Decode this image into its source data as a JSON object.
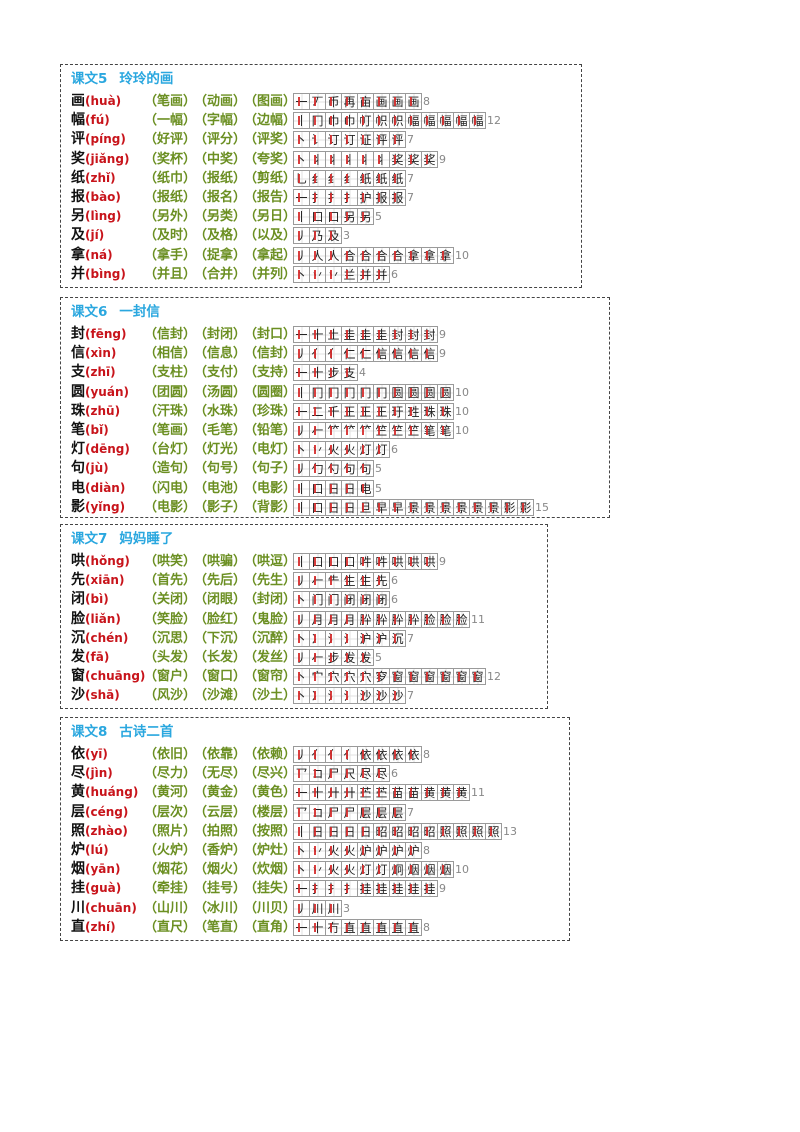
{
  "sections": [
    {
      "number": "课文5",
      "title": "玲玲的画",
      "rows": [
        {
          "char": "画",
          "pinyin": "huà",
          "words": [
            "（笔画）",
            "（动画）",
            "（图画）"
          ],
          "strokes": [
            "一",
            "丆",
            "币",
            "再",
            "亩",
            "画",
            "画",
            "画"
          ],
          "count": "8"
        },
        {
          "char": "幅",
          "pinyin": "fú",
          "words": [
            "（一幅）",
            "（字幅）",
            "（边幅）"
          ],
          "strokes": [
            "丨",
            "冂",
            "巾",
            "巾",
            "帄",
            "帜",
            "帜",
            "幅",
            "幅",
            "幅",
            "幅",
            "幅"
          ],
          "count": "12"
        },
        {
          "char": "评",
          "pinyin": "píng",
          "words": [
            "（好评）",
            "（评分）",
            "（评奖）"
          ],
          "strokes": [
            "丶",
            "讠",
            "订",
            "订",
            "证",
            "评",
            "评"
          ],
          "count": "7"
        },
        {
          "char": "奖",
          "pinyin": "jiǎng",
          "words": [
            "（奖杯）",
            "（中奖）",
            "（夸奖）"
          ],
          "strokes": [
            "丶",
            "丬",
            "丬",
            "丬",
            "丬",
            "丬",
            "奖",
            "奖",
            "奖"
          ],
          "count": "9"
        },
        {
          "char": "纸",
          "pinyin": "zhǐ",
          "words": [
            "（纸巾）",
            "（报纸）",
            "（剪纸）"
          ],
          "strokes": [
            "乚",
            "纟",
            "纟",
            "纟",
            "纸",
            "纸",
            "纸"
          ],
          "count": "7"
        },
        {
          "char": "报",
          "pinyin": "bào",
          "words": [
            "（报纸）",
            "（报名）",
            "（报告）"
          ],
          "strokes": [
            "一",
            "扌",
            "扌",
            "扌",
            "护",
            "报",
            "报"
          ],
          "count": "7"
        },
        {
          "char": "另",
          "pinyin": "lìng",
          "words": [
            "（另外）",
            "（另类）",
            "（另日）"
          ],
          "strokes": [
            "丨",
            "口",
            "口",
            "另",
            "另"
          ],
          "count": "5"
        },
        {
          "char": "及",
          "pinyin": "jí",
          "words": [
            "（及时）",
            "（及格）",
            "（以及）"
          ],
          "strokes": [
            "丿",
            "乃",
            "及"
          ],
          "count": "3"
        },
        {
          "char": "拿",
          "pinyin": "ná",
          "words": [
            "（拿手）",
            "（捉拿）",
            "（拿起）"
          ],
          "strokes": [
            "丿",
            "人",
            "人",
            "合",
            "合",
            "合",
            "合",
            "拿",
            "拿",
            "拿"
          ],
          "count": "10"
        },
        {
          "char": "并",
          "pinyin": "bìng",
          "words": [
            "（并且）",
            "（合并）",
            "（并列）"
          ],
          "strokes": [
            "丶",
            "丷",
            "丷",
            "兰",
            "并",
            "并"
          ],
          "count": "6"
        }
      ]
    },
    {
      "number": "课文6",
      "title": "一封信",
      "rows": [
        {
          "char": "封",
          "pinyin": "fēng",
          "words": [
            "（信封）",
            "（封闭）",
            "（封口）"
          ],
          "strokes": [
            "一",
            "十",
            "土",
            "圭",
            "圭",
            "圭",
            "封",
            "封",
            "封"
          ],
          "count": "9"
        },
        {
          "char": "信",
          "pinyin": "xìn",
          "words": [
            "（相信）",
            "（信息）",
            "（信封）"
          ],
          "strokes": [
            "丿",
            "亻",
            "亻",
            "仁",
            "仁",
            "信",
            "信",
            "信",
            "信"
          ],
          "count": "9"
        },
        {
          "char": "支",
          "pinyin": "zhī",
          "words": [
            "（支柱）",
            "（支付）",
            "（支持）"
          ],
          "strokes": [
            "一",
            "十",
            "步",
            "支"
          ],
          "count": "4"
        },
        {
          "char": "圆",
          "pinyin": "yuán",
          "words": [
            "（团圆）",
            "（汤圆）",
            "（圆圈）"
          ],
          "strokes": [
            "丨",
            "冂",
            "冂",
            "冂",
            "冂",
            "冂",
            "圆",
            "圆",
            "圆",
            "圆"
          ],
          "count": "10"
        },
        {
          "char": "珠",
          "pinyin": "zhū",
          "words": [
            "（汗珠）",
            "（水珠）",
            "（珍珠）"
          ],
          "strokes": [
            "一",
            "二",
            "千",
            "王",
            "王",
            "王",
            "玗",
            "珄",
            "珠",
            "珠"
          ],
          "count": "10"
        },
        {
          "char": "笔",
          "pinyin": "bǐ",
          "words": [
            "（笔画）",
            "（毛笔）",
            "（铅笔）"
          ],
          "strokes": [
            "丿",
            "𠂉",
            "𥫗",
            "𥫗",
            "𥫗",
            "竺",
            "竺",
            "竺",
            "笔",
            "笔"
          ],
          "count": "10"
        },
        {
          "char": "灯",
          "pinyin": "dēng",
          "words": [
            "（台灯）",
            "（灯光）",
            "（电灯）"
          ],
          "strokes": [
            "丶",
            "丷",
            "火",
            "火",
            "灯",
            "灯"
          ],
          "count": "6"
        },
        {
          "char": "句",
          "pinyin": "jù",
          "words": [
            "（造句）",
            "（句号）",
            "（句子）"
          ],
          "strokes": [
            "丿",
            "勹",
            "勺",
            "句",
            "句"
          ],
          "count": "5"
        },
        {
          "char": "电",
          "pinyin": "diàn",
          "words": [
            "（闪电）",
            "（电池）",
            "（电影）"
          ],
          "strokes": [
            "丨",
            "口",
            "日",
            "日",
            "电"
          ],
          "count": "5"
        },
        {
          "char": "影",
          "pinyin": "yǐng",
          "words": [
            "（电影）",
            "（影子）",
            "（背影）"
          ],
          "strokes": [
            "丨",
            "口",
            "日",
            "日",
            "旦",
            "早",
            "早",
            "景",
            "景",
            "景",
            "景",
            "景",
            "景",
            "影",
            "影"
          ],
          "count": "15"
        }
      ]
    },
    {
      "number": "课文7",
      "title": "妈妈睡了",
      "rows": [
        {
          "char": "哄",
          "pinyin": "hǒng",
          "words": [
            "（哄笑）",
            "（哄骗）",
            "（哄逗）"
          ],
          "strokes": [
            "丨",
            "口",
            "口",
            "口",
            "吽",
            "吽",
            "哄",
            "哄",
            "哄"
          ],
          "count": "9"
        },
        {
          "char": "先",
          "pinyin": "xiān",
          "words": [
            "（首先）",
            "（先后）",
            "（先生）"
          ],
          "strokes": [
            "丿",
            "𠂉",
            "⺧",
            "生",
            "生",
            "先"
          ],
          "count": "6"
        },
        {
          "char": "闭",
          "pinyin": "bì",
          "words": [
            "（关闭）",
            "（闭眼）",
            "（封闭）"
          ],
          "strokes": [
            "丶",
            "门",
            "门",
            "闭",
            "闭",
            "闭"
          ],
          "count": "6"
        },
        {
          "char": "脸",
          "pinyin": "liǎn",
          "words": [
            "（笑脸）",
            "（脸红）",
            "（鬼脸）"
          ],
          "strokes": [
            "丿",
            "月",
            "月",
            "月",
            "肸",
            "肸",
            "肸",
            "肸",
            "脸",
            "脸",
            "脸"
          ],
          "count": "11"
        },
        {
          "char": "沉",
          "pinyin": "chén",
          "words": [
            "（沉思）",
            "（下沉）",
            "（沉醉）"
          ],
          "strokes": [
            "丶",
            "冫",
            "氵",
            "氵",
            "沪",
            "沪",
            "沉"
          ],
          "count": "7"
        },
        {
          "char": "发",
          "pinyin": "fā",
          "words": [
            "（头发）",
            "（长发）",
            "（发丝）"
          ],
          "strokes": [
            "丿",
            "𠂉",
            "步",
            "发",
            "发"
          ],
          "count": "5"
        },
        {
          "char": "窗",
          "pinyin": "chuāng",
          "words": [
            "（窗户）",
            "（窗口）",
            "（窗帘）"
          ],
          "strokes": [
            "丶",
            "宀",
            "穴",
            "穴",
            "穴",
            "穸",
            "窗",
            "窗",
            "窗",
            "窗",
            "窗",
            "窗"
          ],
          "count": "12"
        },
        {
          "char": "沙",
          "pinyin": "shā",
          "words": [
            "（风沙）",
            "（沙滩）",
            "（沙土）"
          ],
          "strokes": [
            "丶",
            "冫",
            "氵",
            "氵",
            "沙",
            "沙",
            "沙"
          ],
          "count": "7"
        }
      ]
    },
    {
      "number": "课文8",
      "title": "古诗二首",
      "rows": [
        {
          "char": "依",
          "pinyin": "yī",
          "words": [
            "（依旧）",
            "（依靠）",
            "（依赖）"
          ],
          "strokes": [
            "丿",
            "亻",
            "亻",
            "亻",
            "依",
            "依",
            "依",
            "依"
          ],
          "count": "8"
        },
        {
          "char": "尽",
          "pinyin": "jìn",
          "words": [
            "（尽力）",
            "（无尽）",
            "（尽兴）"
          ],
          "strokes": [
            "乛",
            "コ",
            "尸",
            "尺",
            "尽",
            "尽"
          ],
          "count": "6"
        },
        {
          "char": "黄",
          "pinyin": "huáng",
          "words": [
            "（黄河）",
            "（黄金）",
            "（黄色）"
          ],
          "strokes": [
            "一",
            "十",
            "廾",
            "廾",
            "苎",
            "苎",
            "苗",
            "苗",
            "黄",
            "黄",
            "黄"
          ],
          "count": "11"
        },
        {
          "char": "层",
          "pinyin": "céng",
          "words": [
            "（层次）",
            "（云层）",
            "（楼层）"
          ],
          "strokes": [
            "乛",
            "コ",
            "尸",
            "尸",
            "层",
            "层",
            "层"
          ],
          "count": "7"
        },
        {
          "char": "照",
          "pinyin": "zhào",
          "words": [
            "（照片）",
            "（拍照）",
            "（按照）"
          ],
          "strokes": [
            "丨",
            "日",
            "日",
            "日",
            "日",
            "昭",
            "昭",
            "昭",
            "昭",
            "照",
            "照",
            "照",
            "照"
          ],
          "count": "13"
        },
        {
          "char": "炉",
          "pinyin": "lú",
          "words": [
            "（火炉）",
            "（香炉）",
            "（炉灶）"
          ],
          "strokes": [
            "丶",
            "丷",
            "火",
            "火",
            "炉",
            "炉",
            "炉",
            "炉"
          ],
          "count": "8"
        },
        {
          "char": "烟",
          "pinyin": "yān",
          "words": [
            "（烟花）",
            "（烟火）",
            "（炊烟）"
          ],
          "strokes": [
            "丶",
            "丷",
            "火",
            "火",
            "灯",
            "灯",
            "炯",
            "烟",
            "烟",
            "烟"
          ],
          "count": "10"
        },
        {
          "char": "挂",
          "pinyin": "guà",
          "words": [
            "（牵挂）",
            "（挂号）",
            "（挂失）"
          ],
          "strokes": [
            "一",
            "扌",
            "扌",
            "扌",
            "挂",
            "挂",
            "挂",
            "挂",
            "挂"
          ],
          "count": "9"
        },
        {
          "char": "川",
          "pinyin": "chuān",
          "words": [
            "（山川）",
            "（冰川）",
            "（川贝）"
          ],
          "strokes": [
            "丿",
            "川",
            "川"
          ],
          "count": "3"
        },
        {
          "char": "直",
          "pinyin": "zhí",
          "words": [
            "（直尺）",
            "（笔直）",
            "（直角）"
          ],
          "strokes": [
            "一",
            "十",
            "冇",
            "直",
            "直",
            "直",
            "直",
            "直"
          ],
          "count": "8"
        }
      ]
    }
  ]
}
